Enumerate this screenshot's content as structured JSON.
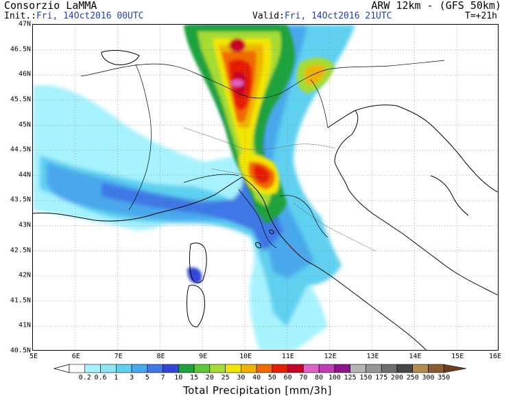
{
  "header": {
    "org": "Consorzio LaMMA",
    "init_label": "Init.:",
    "init_value": "Fri, 14Oct2016 00UTC",
    "valid_label": "Valid:",
    "valid_value": "Fri, 14Oct2016 21UTC",
    "model": "ARW 12km - (GFS 50km)",
    "lead": "T=+21h"
  },
  "map": {
    "lat_labels": [
      "47N",
      "46.5N",
      "46N",
      "45.5N",
      "45N",
      "44.5N",
      "44N",
      "43.5N",
      "43N",
      "42.5N",
      "42N",
      "41.5N",
      "41N",
      "40.5N"
    ],
    "lon_labels": [
      "5E",
      "6E",
      "7E",
      "8E",
      "9E",
      "10E",
      "11E",
      "12E",
      "13E",
      "14E",
      "15E",
      "16E"
    ],
    "lat_range": [
      40.5,
      47
    ],
    "lon_range": [
      5,
      16
    ],
    "grid": "dotted"
  },
  "legend": {
    "title": "Total Precipitation [mm/3h]",
    "levels": [
      "0.2",
      "0.6",
      "1",
      "3",
      "5",
      "7",
      "10",
      "15",
      "20",
      "25",
      "30",
      "40",
      "50",
      "60",
      "70",
      "80",
      "100",
      "125",
      "150",
      "175",
      "200",
      "250",
      "300",
      "350"
    ],
    "colors": [
      "#a6f2ff",
      "#8ee6f5",
      "#5fd0f0",
      "#4aa8ec",
      "#3c78e6",
      "#3346d6",
      "#1ea33c",
      "#5fc83a",
      "#a6dc32",
      "#f2e600",
      "#f0b400",
      "#f06a00",
      "#e61e00",
      "#c80028",
      "#dc64c8",
      "#be3cb4",
      "#8c148c",
      "#b4b4b4",
      "#969696",
      "#6e6e6e",
      "#464646",
      "#b48c50",
      "#8c5a2d",
      "#6e3c1e"
    ]
  }
}
